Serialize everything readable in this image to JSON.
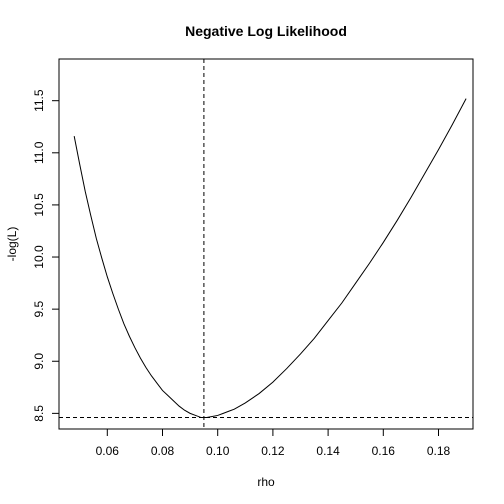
{
  "chart_data": {
    "type": "line",
    "title": "Negative Log Likelihood",
    "xlabel": "rho",
    "ylabel": "-log(L)",
    "xlim": [
      0.0425,
      0.1925
    ],
    "ylim": [
      8.35,
      11.9
    ],
    "x_ticks": [
      0.06,
      0.08,
      0.1,
      0.12,
      0.14,
      0.16,
      0.18
    ],
    "x_tick_labels": [
      "0.06",
      "0.08",
      "0.10",
      "0.12",
      "0.14",
      "0.16",
      "0.18"
    ],
    "y_ticks": [
      8.5,
      9.0,
      9.5,
      10.0,
      10.5,
      11.0,
      11.5
    ],
    "y_tick_labels": [
      "8.5",
      "9.0",
      "9.5",
      "10.0",
      "10.5",
      "11.0",
      "11.5"
    ],
    "grid": false,
    "legend": "none",
    "series": [
      {
        "x": [
          0.048,
          0.05,
          0.052,
          0.054,
          0.056,
          0.058,
          0.06,
          0.062,
          0.064,
          0.066,
          0.068,
          0.07,
          0.072,
          0.074,
          0.076,
          0.078,
          0.08,
          0.082,
          0.084,
          0.086,
          0.088,
          0.09,
          0.092,
          0.094,
          0.095,
          0.096,
          0.098,
          0.1,
          0.102,
          0.104,
          0.106,
          0.108,
          0.11,
          0.115,
          0.12,
          0.125,
          0.13,
          0.135,
          0.14,
          0.145,
          0.15,
          0.155,
          0.16,
          0.165,
          0.17,
          0.175,
          0.18,
          0.185,
          0.19
        ],
        "y": [
          11.16,
          10.89,
          10.63,
          10.4,
          10.18,
          9.99,
          9.81,
          9.65,
          9.5,
          9.36,
          9.24,
          9.13,
          9.03,
          8.94,
          8.86,
          8.79,
          8.72,
          8.67,
          8.62,
          8.57,
          8.53,
          8.5,
          8.48,
          8.46,
          8.46,
          8.46,
          8.47,
          8.48,
          8.5,
          8.52,
          8.54,
          8.57,
          8.6,
          8.69,
          8.8,
          8.93,
          9.07,
          9.22,
          9.39,
          9.56,
          9.75,
          9.94,
          10.14,
          10.35,
          10.57,
          10.8,
          11.03,
          11.27,
          11.52
        ]
      }
    ],
    "reference_lines": [
      {
        "orientation": "vertical",
        "x": 0.095,
        "style": "dashed"
      },
      {
        "orientation": "horizontal",
        "y": 8.46,
        "style": "dashed"
      }
    ]
  }
}
